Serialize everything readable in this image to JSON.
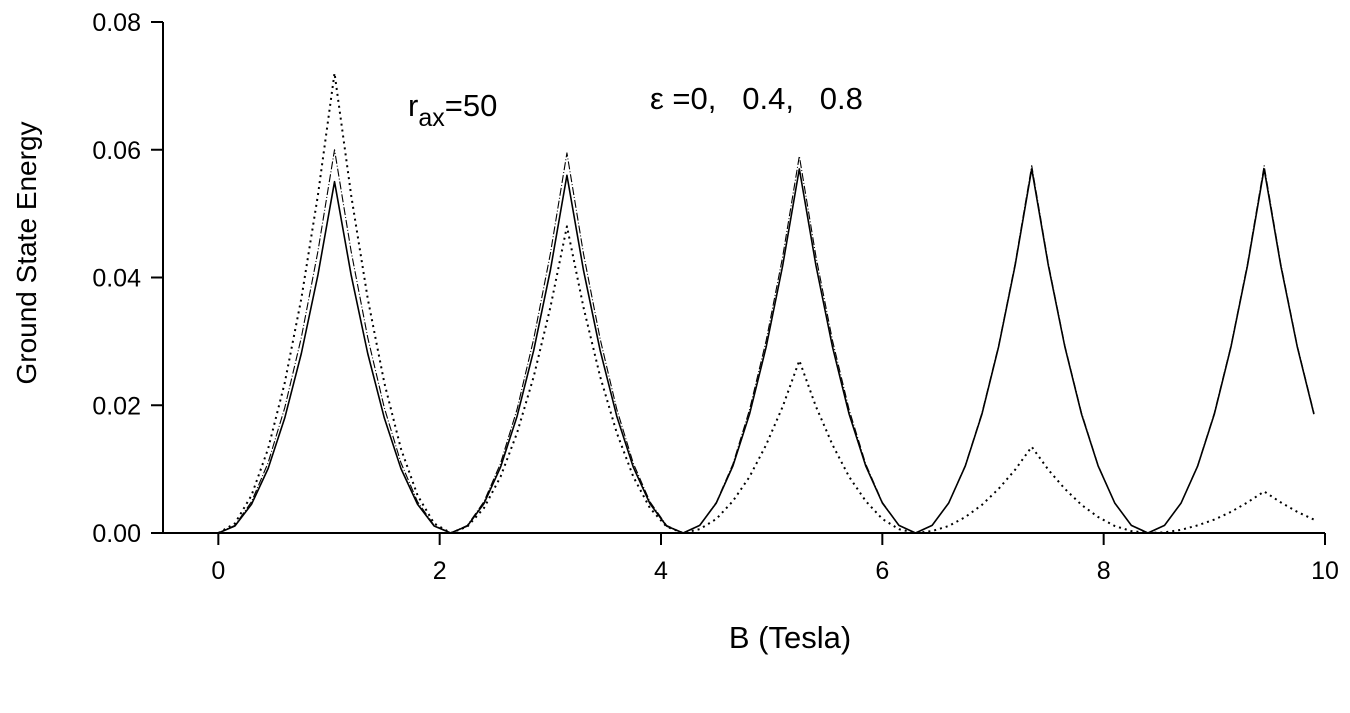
{
  "chart_data": {
    "type": "line",
    "x_label": "B (Tesla)",
    "y_label": "Ground State Energy",
    "annotations": [
      {
        "base": "r",
        "sub": "ax",
        "rest": "=50"
      },
      {
        "text": "ε =0,   0.4,   0.8"
      }
    ],
    "xlim": [
      -0.5,
      10
    ],
    "ylim": [
      0,
      0.08
    ],
    "xticks": [
      0,
      2,
      4,
      6,
      8,
      10
    ],
    "yticks": [
      {
        "value": 0,
        "label": "0.00"
      },
      {
        "value": 0.02,
        "label": "0.02"
      },
      {
        "value": 0.04,
        "label": "0.04"
      },
      {
        "value": 0.06,
        "label": "0.06"
      },
      {
        "value": 0.08,
        "label": "0.08"
      }
    ],
    "x": [
      0,
      0.15,
      0.3,
      0.45,
      0.6,
      0.75,
      0.9,
      1.05,
      1.2,
      1.35,
      1.5,
      1.65,
      1.8,
      1.95,
      2.1,
      2.25,
      2.4,
      2.55,
      2.7,
      2.85,
      3.0,
      3.15,
      3.3,
      3.45,
      3.6,
      3.75,
      3.9,
      4.05,
      4.2,
      4.35,
      4.5,
      4.65,
      4.8,
      4.95,
      5.1,
      5.25,
      5.4,
      5.55,
      5.7,
      5.85,
      6.0,
      6.15,
      6.3,
      6.45,
      6.6,
      6.75,
      6.9,
      7.05,
      7.2,
      7.35,
      7.5,
      7.65,
      7.8,
      7.95,
      8.1,
      8.25,
      8.4,
      8.55,
      8.7,
      8.85,
      9.0,
      9.15,
      9.3,
      9.45,
      9.6,
      9.75,
      9.9
    ],
    "series": [
      {
        "color": "#000000",
        "line_style": "solid",
        "width": 1.6,
        "values": [
          0,
          0.0011,
          0.0045,
          0.0101,
          0.018,
          0.0281,
          0.0404,
          0.055,
          0.0404,
          0.0281,
          0.018,
          0.0101,
          0.0045,
          0.0011,
          0,
          0.0011,
          0.0046,
          0.0103,
          0.0183,
          0.0286,
          0.0411,
          0.056,
          0.0411,
          0.0286,
          0.0183,
          0.0103,
          0.0046,
          0.0011,
          0,
          0.0012,
          0.0047,
          0.0105,
          0.0186,
          0.0291,
          0.0419,
          0.057,
          0.0419,
          0.0291,
          0.0186,
          0.0105,
          0.0047,
          0.0012,
          0,
          0.0012,
          0.0047,
          0.0105,
          0.0186,
          0.0291,
          0.0419,
          0.057,
          0.0419,
          0.0291,
          0.0186,
          0.0105,
          0.0047,
          0.0012,
          0,
          0.0012,
          0.0047,
          0.0105,
          0.0186,
          0.0291,
          0.0419,
          0.057,
          0.0419,
          0.0291,
          0.0186
        ]
      },
      {
        "color": "#000000",
        "line_style": "dashdot",
        "width": 1.1,
        "values": [
          0,
          0.0012,
          0.0049,
          0.011,
          0.0196,
          0.0306,
          0.0441,
          0.06,
          0.0441,
          0.0306,
          0.0196,
          0.011,
          0.0049,
          0.0012,
          0,
          0.0012,
          0.0049,
          0.0109,
          0.0194,
          0.0304,
          0.0437,
          0.0595,
          0.0437,
          0.0304,
          0.0194,
          0.0109,
          0.0049,
          0.0012,
          0,
          0.0012,
          0.0048,
          0.0108,
          0.0193,
          0.0301,
          0.0433,
          0.059,
          0.0433,
          0.0301,
          0.0193,
          0.0108,
          0.0048,
          0.0012,
          0,
          0.0012,
          0.0047,
          0.0106,
          0.0188,
          0.0293,
          0.0422,
          0.0575,
          0.0422,
          0.0293,
          0.0188,
          0.0106,
          0.0047,
          0.0012,
          0,
          0.0012,
          0.0047,
          0.0106,
          0.0188,
          0.0293,
          0.0422,
          0.0575,
          0.0422,
          0.0293,
          0.0188
        ]
      },
      {
        "color": "#000000",
        "line_style": "dotted",
        "width": 2,
        "values": [
          0,
          0.0015,
          0.0059,
          0.0132,
          0.0235,
          0.0367,
          0.0529,
          0.072,
          0.0529,
          0.0367,
          0.0235,
          0.0132,
          0.0059,
          0.0015,
          0,
          0.001,
          0.0039,
          0.0088,
          0.0157,
          0.0245,
          0.0353,
          0.048,
          0.0353,
          0.0245,
          0.0157,
          0.0088,
          0.0039,
          0.001,
          0,
          0.0006,
          0.0022,
          0.005,
          0.0088,
          0.0138,
          0.0198,
          0.027,
          0.0198,
          0.0138,
          0.0088,
          0.005,
          0.0022,
          0.0006,
          0,
          0.0003,
          0.0011,
          0.0025,
          0.0044,
          0.0069,
          0.0099,
          0.0135,
          0.0099,
          0.0069,
          0.0044,
          0.0025,
          0.0011,
          0.0003,
          0,
          0.0001,
          0.0005,
          0.0012,
          0.0021,
          0.0033,
          0.0048,
          0.0065,
          0.0048,
          0.0033,
          0.0021
        ]
      }
    ]
  }
}
